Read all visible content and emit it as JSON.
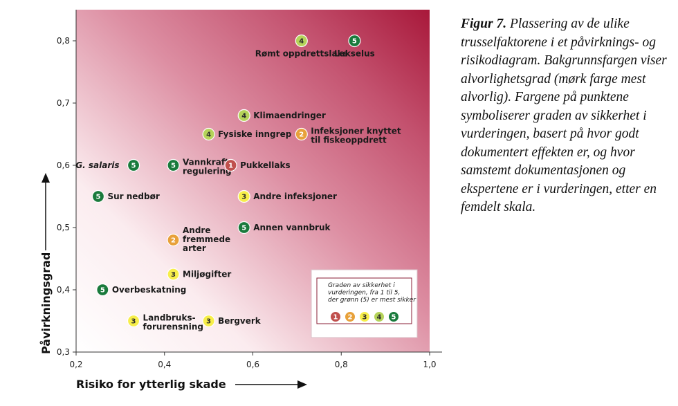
{
  "caption": {
    "label": "Figur 7.",
    "text": "Plassering av de ulike trusselfaktorene i et påvirknings- og risikodiagram. Bakgrunnsfargen viser alvorlighetsgrad (mørk farge mest alvorlig). Fargene på punktene symboliserer graden av sikkerhet i vurderingen, basert på hvor godt dokumentert effekten er, og hvor samstemt dokumentasjonen og ekspertene er i vurderingen, etter en femdelt skala."
  },
  "chart_data": {
    "type": "scatter",
    "xlabel": "Risiko for ytterlig skade",
    "ylabel": "Påvirkningsgrad",
    "xlim": [
      0.2,
      1.0
    ],
    "ylim": [
      0.3,
      0.85
    ],
    "x_ticks": [
      "0,2",
      "0,4",
      "0,6",
      "0,8",
      "1,0"
    ],
    "y_ticks": [
      "0,3",
      "0,4",
      "0,5",
      "0,6",
      "0,7",
      "0,8"
    ],
    "background": "gradient from white (bottom-left) to dark red (top-right), darker = more serious",
    "grade_colors": {
      "1": "#c0504d",
      "2": "#e8a13a",
      "3": "#f7ee4a",
      "4": "#b5d35a",
      "5": "#1a7a3c"
    },
    "points": [
      {
        "label": [
          "Rømt oppdrettslaks"
        ],
        "x": 0.71,
        "y": 0.8,
        "grade": 4,
        "label_pos": "below"
      },
      {
        "label": [
          "Lakselus"
        ],
        "x": 0.83,
        "y": 0.8,
        "grade": 5,
        "label_pos": "below"
      },
      {
        "label": [
          "Klimaendringer"
        ],
        "x": 0.58,
        "y": 0.68,
        "grade": 4,
        "label_pos": "right"
      },
      {
        "label": [
          "Fysiske inngrep"
        ],
        "x": 0.5,
        "y": 0.65,
        "grade": 4,
        "label_pos": "right"
      },
      {
        "label": [
          "Infeksjoner knyttet",
          "til fiskeoppdrett"
        ],
        "x": 0.71,
        "y": 0.65,
        "grade": 2,
        "label_pos": "right"
      },
      {
        "label": [
          "G. salaris"
        ],
        "x": 0.33,
        "y": 0.6,
        "grade": 5,
        "label_pos": "left",
        "italic": true
      },
      {
        "label": [
          "Vannkraft-",
          "regulering"
        ],
        "x": 0.42,
        "y": 0.6,
        "grade": 5,
        "label_pos": "right"
      },
      {
        "label": [
          "Pukkellaks"
        ],
        "x": 0.55,
        "y": 0.6,
        "grade": 1,
        "label_pos": "right"
      },
      {
        "label": [
          "Sur nedbør"
        ],
        "x": 0.25,
        "y": 0.55,
        "grade": 5,
        "label_pos": "right"
      },
      {
        "label": [
          "Andre infeksjoner"
        ],
        "x": 0.58,
        "y": 0.55,
        "grade": 3,
        "label_pos": "right"
      },
      {
        "label": [
          "Annen vannbruk"
        ],
        "x": 0.58,
        "y": 0.5,
        "grade": 5,
        "label_pos": "right"
      },
      {
        "label": [
          "Andre",
          "fremmede",
          "arter"
        ],
        "x": 0.42,
        "y": 0.48,
        "grade": 2,
        "label_pos": "right"
      },
      {
        "label": [
          "Miljøgifter"
        ],
        "x": 0.42,
        "y": 0.425,
        "grade": 3,
        "label_pos": "right"
      },
      {
        "label": [
          "Overbeskatning"
        ],
        "x": 0.26,
        "y": 0.4,
        "grade": 5,
        "label_pos": "right"
      },
      {
        "label": [
          "Landbruks-",
          "forurensning"
        ],
        "x": 0.33,
        "y": 0.35,
        "grade": 3,
        "label_pos": "right"
      },
      {
        "label": [
          "Bergverk"
        ],
        "x": 0.5,
        "y": 0.35,
        "grade": 3,
        "label_pos": "right"
      }
    ],
    "legend": {
      "title": [
        "Graden av sikkerhet i",
        "vurderingen, fra 1 til 5,",
        "der grønn (5) er mest sikker"
      ],
      "grades": [
        1,
        2,
        3,
        4,
        5
      ],
      "placement": "bottom-right"
    }
  }
}
